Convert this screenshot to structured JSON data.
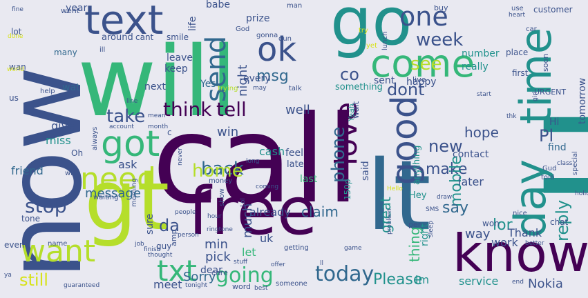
{
  "title": "",
  "palette": {
    "background": "#e9e9f1",
    "dark_purple": "#440154",
    "indigo": "#3b528b",
    "steel_blue": "#31688e",
    "teal": "#21918c",
    "green": "#35b779",
    "lime": "#b5de2b",
    "yellow": "#d7e219"
  },
  "words": [
    {
      "id": "call",
      "text": "call"
    },
    {
      "id": "now",
      "text": "now"
    },
    {
      "id": "will",
      "text": "will"
    },
    {
      "id": "go",
      "text": "go"
    },
    {
      "id": "u",
      "text": "u"
    },
    {
      "id": "free",
      "text": "free"
    },
    {
      "id": "lt",
      "text": "lt"
    },
    {
      "id": "gt",
      "text": "gt"
    },
    {
      "id": "know",
      "text": "know"
    },
    {
      "id": "come",
      "text": "come"
    },
    {
      "id": "text",
      "text": "text"
    },
    {
      "id": "ok",
      "text": "ok"
    },
    {
      "id": "got",
      "text": "got"
    },
    {
      "id": "time",
      "text": "time"
    },
    {
      "id": "day",
      "text": "day"
    },
    {
      "id": "good",
      "text": "good"
    },
    {
      "id": "want",
      "text": "want"
    },
    {
      "id": "love",
      "text": "love"
    },
    {
      "id": "need",
      "text": "need"
    },
    {
      "id": "txt",
      "text": "txt"
    },
    {
      "id": "send",
      "text": "send"
    },
    {
      "id": "one",
      "text": "one"
    },
    {
      "id": "think",
      "text": "think"
    },
    {
      "id": "tell",
      "text": "tell"
    },
    {
      "id": "still",
      "text": "still"
    },
    {
      "id": "going",
      "text": "going"
    },
    {
      "id": "today",
      "text": "today"
    },
    {
      "id": "take",
      "text": "take"
    },
    {
      "id": "stop",
      "text": "stop"
    },
    {
      "id": "back",
      "text": "back"
    },
    {
      "id": "home",
      "text": "home"
    },
    {
      "id": "phone",
      "text": "phone"
    },
    {
      "id": "reply",
      "text": "reply"
    },
    {
      "id": "dont",
      "text": "dont"
    },
    {
      "id": "week",
      "text": "week"
    },
    {
      "id": "see",
      "text": "see"
    },
    {
      "id": "new",
      "text": "new"
    },
    {
      "id": "Pl",
      "text": "Pl"
    },
    {
      "id": "make",
      "text": "make"
    },
    {
      "id": "mobile",
      "text": "mobile"
    },
    {
      "id": "lor",
      "text": "lor"
    },
    {
      "id": "Please",
      "text": "Please"
    },
    {
      "id": "great",
      "text": "great"
    },
    {
      "id": "msg",
      "text": "msg"
    },
    {
      "id": "co",
      "text": "co"
    },
    {
      "id": "night",
      "text": "night"
    },
    {
      "id": "hope",
      "text": "hope"
    },
    {
      "id": "say",
      "text": "say"
    },
    {
      "id": "da",
      "text": "da"
    },
    {
      "id": "claim",
      "text": "claim"
    },
    {
      "id": "much",
      "text": "much"
    },
    {
      "id": "Sorry",
      "text": "Sorry"
    },
    {
      "id": "thing",
      "text": "thing"
    },
    {
      "id": "tomorrow",
      "text": "tomorrow"
    },
    {
      "id": "Nokia",
      "text": "Nokia"
    },
    {
      "id": "work",
      "text": "work"
    },
    {
      "id": "way",
      "text": "way"
    },
    {
      "id": "Thank",
      "text": "Thank"
    },
    {
      "id": "min",
      "text": "min"
    },
    {
      "id": "pick",
      "text": "pick"
    },
    {
      "id": "message",
      "text": "message"
    },
    {
      "id": "friend",
      "text": "friend"
    },
    {
      "id": "give",
      "text": "give"
    },
    {
      "id": "miss",
      "text": "miss"
    },
    {
      "id": "well",
      "text": "well"
    },
    {
      "id": "win",
      "text": "win"
    },
    {
      "id": "cash",
      "text": "cash"
    },
    {
      "id": "ask",
      "text": "ask"
    },
    {
      "id": "already",
      "text": "already"
    },
    {
      "id": "said",
      "text": "said"
    },
    {
      "id": "right",
      "text": "right"
    },
    {
      "id": "later",
      "text": "later"
    },
    {
      "id": "contact",
      "text": "contact"
    },
    {
      "id": "meet",
      "text": "meet"
    },
    {
      "id": "dear",
      "text": "dear"
    },
    {
      "id": "sure",
      "text": "sure"
    },
    {
      "id": "service",
      "text": "service"
    },
    {
      "id": "im",
      "text": "im"
    },
    {
      "id": "let",
      "text": "let"
    },
    {
      "id": "uk",
      "text": "uk"
    },
    {
      "id": "keep",
      "text": "keep"
    },
    {
      "id": "leave",
      "text": "leave"
    },
    {
      "id": "next",
      "text": "next"
    },
    {
      "id": "life",
      "text": "life"
    },
    {
      "id": "Yes",
      "text": "Yes"
    },
    {
      "id": "every",
      "text": "every"
    },
    {
      "id": "sent",
      "text": "sent"
    },
    {
      "id": "happy",
      "text": "happy"
    },
    {
      "id": "something",
      "text": "something"
    },
    {
      "id": "number",
      "text": "number"
    },
    {
      "id": "really",
      "text": "really"
    },
    {
      "id": "prize",
      "text": "prize"
    },
    {
      "id": "babe",
      "text": "babe"
    },
    {
      "id": "year",
      "text": "year"
    },
    {
      "id": "lot",
      "text": "lot"
    },
    {
      "id": "wat",
      "text": "wat"
    },
    {
      "id": "around",
      "text": "around"
    },
    {
      "id": "cant",
      "text": "cant"
    },
    {
      "id": "smile",
      "text": "smile"
    },
    {
      "id": "many",
      "text": "many"
    },
    {
      "id": "wan",
      "text": "wan"
    },
    {
      "id": "us",
      "text": "us"
    },
    {
      "id": "feel",
      "text": "feel"
    },
    {
      "id": "late",
      "text": "late"
    },
    {
      "id": "last",
      "text": "last"
    },
    {
      "id": "anything",
      "text": "anything"
    },
    {
      "id": "150p",
      "text": "150p"
    },
    {
      "id": "Hey",
      "text": "Hey"
    },
    {
      "id": "Hi",
      "text": "Hi"
    },
    {
      "id": "find",
      "text": "find"
    },
    {
      "id": "customer",
      "text": "customer"
    },
    {
      "id": "place",
      "text": "place"
    },
    {
      "id": "first",
      "text": "first"
    },
    {
      "id": "URGENT",
      "text": "URGENT"
    },
    {
      "id": "chat",
      "text": "chat"
    },
    {
      "id": "won",
      "text": "won"
    },
    {
      "id": "tone",
      "text": "tone"
    },
    {
      "id": "even",
      "text": "even"
    },
    {
      "id": "name",
      "text": "name"
    },
    {
      "id": "money",
      "text": "money"
    },
    {
      "id": "morning",
      "text": "morning"
    },
    {
      "id": "waiting",
      "text": "waiting"
    },
    {
      "id": "always",
      "text": "always"
    },
    {
      "id": "Oh",
      "text": "Oh"
    },
    {
      "id": "wish",
      "text": "wish"
    },
    {
      "id": "went",
      "text": "went"
    },
    {
      "id": "fine",
      "text": "fine"
    },
    {
      "id": "gonna",
      "text": "gonna"
    },
    {
      "id": "dun",
      "text": "dun"
    },
    {
      "id": "show",
      "text": "show"
    },
    {
      "id": "guy",
      "text": "guy"
    },
    {
      "id": "amp",
      "text": "amp"
    },
    {
      "id": "care",
      "text": "care"
    },
    {
      "id": "word",
      "text": "word"
    },
    {
      "id": "someone",
      "text": "someone"
    },
    {
      "id": "getting",
      "text": "getting"
    },
    {
      "id": "per",
      "text": "per"
    },
    {
      "id": "nice",
      "text": "nice"
    },
    {
      "id": "told",
      "text": "told"
    },
    {
      "id": "Yeah",
      "text": "Yeah"
    },
    {
      "id": "wait",
      "text": "wait"
    },
    {
      "id": "help",
      "text": "help"
    },
    {
      "id": "trying",
      "text": "trying"
    },
    {
      "id": "talk",
      "text": "talk"
    },
    {
      "id": "live",
      "text": "live"
    },
    {
      "id": "soon",
      "text": "soon"
    },
    {
      "id": "heart",
      "text": "heart"
    },
    {
      "id": "use",
      "text": "use"
    },
    {
      "id": "buy",
      "text": "buy"
    },
    {
      "id": "man",
      "text": "man"
    },
    {
      "id": "God",
      "text": "God"
    },
    {
      "id": "ill",
      "text": "ill"
    },
    {
      "id": "done",
      "text": "done"
    },
    {
      "id": "world",
      "text": "world"
    },
    {
      "id": "try",
      "text": "try"
    },
    {
      "id": "lunch",
      "text": "lunch"
    },
    {
      "id": "car",
      "text": "car"
    },
    {
      "id": "yet",
      "text": "yet"
    },
    {
      "id": "start",
      "text": "start"
    },
    {
      "id": "line",
      "text": "line"
    },
    {
      "id": "may",
      "text": "may"
    },
    {
      "id": "mean",
      "text": "mean"
    },
    {
      "id": "account",
      "text": "account"
    },
    {
      "id": "month",
      "text": "month"
    },
    {
      "id": "c",
      "text": "c"
    },
    {
      "id": "never",
      "text": "never"
    },
    {
      "id": "long",
      "text": "long"
    },
    {
      "id": "coming",
      "text": "coming"
    },
    {
      "id": "Hello",
      "text": "Hello"
    },
    {
      "id": "girl",
      "text": "girl"
    },
    {
      "id": "thk",
      "text": "thk"
    },
    {
      "id": "class",
      "text": "class"
    },
    {
      "id": "Gud",
      "text": "Gud"
    },
    {
      "id": "special",
      "text": "special"
    },
    {
      "id": "holiday",
      "text": "holiday"
    },
    {
      "id": "SMS",
      "text": "SMS"
    },
    {
      "id": "draw",
      "text": "draw"
    },
    {
      "id": "Lol",
      "text": "Lol"
    },
    {
      "id": "hour",
      "text": "hour"
    },
    {
      "id": "people",
      "text": "people"
    },
    {
      "id": "person",
      "text": "person"
    },
    {
      "id": "ringtone",
      "text": "ringtone"
    },
    {
      "id": "job",
      "text": "job"
    },
    {
      "id": "finish",
      "text": "finish"
    },
    {
      "id": "thought",
      "text": "thought"
    },
    {
      "id": "stuff",
      "text": "stuff"
    },
    {
      "id": "offer",
      "text": "offer"
    },
    {
      "id": "ll",
      "text": "ll"
    },
    {
      "id": "problem",
      "text": "problem"
    },
    {
      "id": "game",
      "text": "game"
    },
    {
      "id": "sleep",
      "text": "sleep"
    },
    {
      "id": "better",
      "text": "better"
    },
    {
      "id": "end",
      "text": "end"
    },
    {
      "id": "best",
      "text": "best"
    },
    {
      "id": "tonight",
      "text": "tonight"
    },
    {
      "id": "guaranteed",
      "text": "guaranteed"
    },
    {
      "id": "ya",
      "text": "ya"
    }
  ]
}
